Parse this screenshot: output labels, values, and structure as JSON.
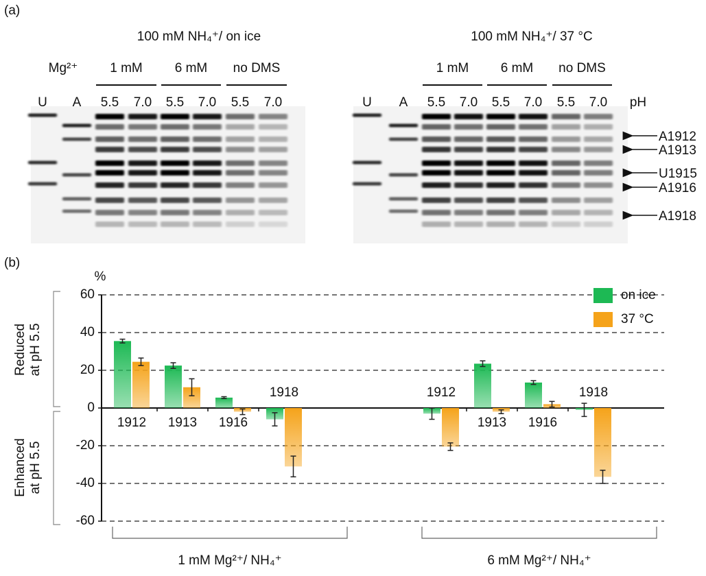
{
  "panel_a": {
    "label": "(a)",
    "gels": [
      {
        "title": "100 mM NH₄⁺/ on ice",
        "mg_label": "Mg²⁺",
        "groups": [
          "1 mM",
          "6 mM",
          "no DMS"
        ],
        "lanes": [
          "U",
          "A",
          "5.5",
          "7.0",
          "5.5",
          "7.0",
          "5.5",
          "7.0"
        ]
      },
      {
        "title": "100 mM NH₄⁺/ 37 °C",
        "groups": [
          "1 mM",
          "6 mM",
          "no DMS"
        ],
        "lanes": [
          "U",
          "A",
          "5.5",
          "7.0",
          "5.5",
          "7.0",
          "5.5",
          "7.0"
        ],
        "ph_label": "pH",
        "bands": [
          "A1912",
          "A1913",
          "U1915",
          "A1916",
          "A1918"
        ]
      }
    ]
  },
  "chart_data": {
    "type": "bar",
    "panel_label": "(b)",
    "y_unit": "%",
    "upper_label": [
      "Reduced",
      "at pH 5.5"
    ],
    "lower_label": [
      "Enhanced",
      "at pH 5.5"
    ],
    "categories": [
      "1912",
      "1913",
      "1916",
      "1918",
      "1912",
      "1913",
      "1916",
      "1918"
    ],
    "groups": [
      "1 mM Mg²⁺/ NH₄⁺",
      "6 mM Mg²⁺/ NH₄⁺"
    ],
    "series": [
      {
        "name": "on ice",
        "color": "#1db954",
        "values": [
          35.5,
          22.5,
          5.5,
          -6,
          -3,
          23.5,
          13.5,
          -1
        ],
        "errors": [
          1,
          1.5,
          0.5,
          3.5,
          3,
          1.5,
          1,
          3.5
        ]
      },
      {
        "name": "37 °C",
        "color": "#f5a31a",
        "values": [
          24.5,
          11,
          -2,
          -31,
          -20.5,
          -2,
          2,
          -36.5
        ],
        "errors": [
          2,
          4.5,
          1.5,
          5.5,
          2,
          1,
          1.5,
          3.5
        ]
      }
    ],
    "ylim": [
      -60,
      60
    ],
    "yticks": [
      -60,
      -40,
      -20,
      0,
      20,
      40,
      60
    ],
    "grid": true,
    "legend": "upper right"
  }
}
